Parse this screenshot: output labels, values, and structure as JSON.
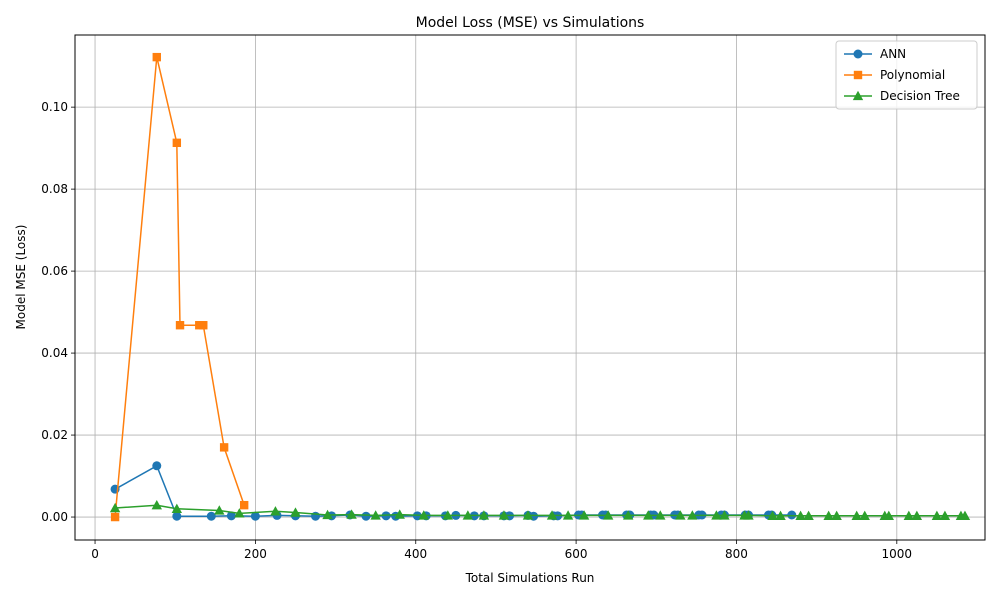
{
  "chart_data": {
    "type": "line",
    "title": "Model Loss (MSE) vs Simulations",
    "xlabel": "Total Simulations Run",
    "ylabel": "Model MSE (Loss)",
    "xlim": [
      -25,
      1110
    ],
    "ylim": [
      -0.0056,
      0.1176
    ],
    "xticks": [
      0,
      200,
      400,
      600,
      800,
      1000
    ],
    "xtick_labels": [
      "0",
      "200",
      "400",
      "600",
      "800",
      "1000"
    ],
    "yticks": [
      0.0,
      0.02,
      0.04,
      0.06,
      0.08,
      0.1
    ],
    "ytick_labels": [
      "0.00",
      "0.02",
      "0.04",
      "0.06",
      "0.08",
      "0.10"
    ],
    "grid": true,
    "legend_position": "top-right",
    "series": [
      {
        "name": "ANN",
        "color": "#1f77b4",
        "marker": "circle",
        "x": [
          25,
          77,
          102,
          145,
          170,
          200,
          227,
          250,
          275,
          295,
          318,
          338,
          363,
          375,
          402,
          413,
          437,
          450,
          473,
          485,
          510,
          517,
          540,
          547,
          572,
          577,
          603,
          607,
          633,
          637,
          663,
          667,
          693,
          697,
          723,
          727,
          753,
          757,
          781,
          785,
          811,
          815,
          840,
          844,
          869
        ],
        "y": [
          0.0068,
          0.0125,
          0.0002,
          0.0002,
          0.0003,
          0.0002,
          0.0004,
          0.0003,
          0.0002,
          0.0003,
          0.0005,
          0.0002,
          0.0003,
          0.0002,
          0.0003,
          0.0003,
          0.0003,
          0.0004,
          0.0003,
          0.0003,
          0.0003,
          0.0003,
          0.0004,
          0.0002,
          0.0003,
          0.0003,
          0.0005,
          0.0005,
          0.0005,
          0.0005,
          0.0005,
          0.0005,
          0.0005,
          0.0005,
          0.0005,
          0.0005,
          0.0005,
          0.0005,
          0.0005,
          0.0005,
          0.0005,
          0.0005,
          0.0005,
          0.0005,
          0.0005
        ]
      },
      {
        "name": "Polynomial",
        "color": "#ff7f0e",
        "marker": "square",
        "x": [
          25,
          77,
          102,
          106,
          130,
          135,
          161,
          186
        ],
        "y": [
          0.0,
          0.1122,
          0.0913,
          0.0468,
          0.0468,
          0.0468,
          0.017,
          0.0029
        ]
      },
      {
        "name": "Decision Tree",
        "color": "#2ca02c",
        "marker": "triangle",
        "x": [
          25,
          77,
          102,
          155,
          180,
          225,
          250,
          290,
          320,
          350,
          380,
          410,
          440,
          465,
          485,
          510,
          540,
          570,
          590,
          610,
          640,
          665,
          690,
          705,
          730,
          745,
          775,
          785,
          810,
          815,
          845,
          855,
          880,
          890,
          915,
          925,
          950,
          960,
          985,
          990,
          1015,
          1025,
          1050,
          1060,
          1080,
          1085
        ],
        "y": [
          0.0022,
          0.0029,
          0.002,
          0.0016,
          0.0009,
          0.0014,
          0.0011,
          0.0005,
          0.0006,
          0.0004,
          0.0006,
          0.0004,
          0.0004,
          0.0004,
          0.0004,
          0.0004,
          0.0004,
          0.0004,
          0.0004,
          0.0004,
          0.0004,
          0.0004,
          0.0004,
          0.0004,
          0.0004,
          0.0004,
          0.0004,
          0.0004,
          0.0004,
          0.0004,
          0.0003,
          0.0003,
          0.0003,
          0.0003,
          0.0003,
          0.0003,
          0.0003,
          0.0003,
          0.0003,
          0.0003,
          0.0003,
          0.0003,
          0.0003,
          0.0003,
          0.0003,
          0.0003
        ]
      }
    ]
  }
}
